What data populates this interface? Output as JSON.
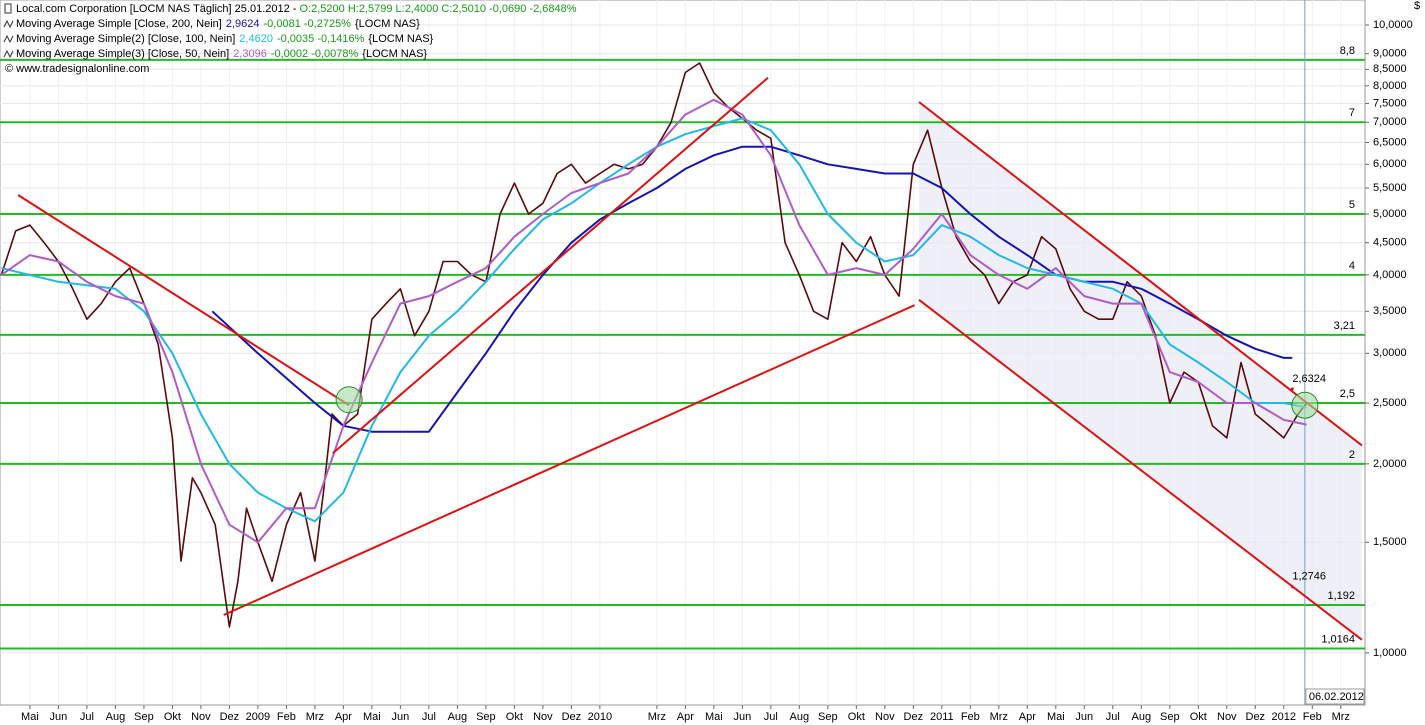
{
  "chart_data": {
    "type": "line",
    "log_scale": true,
    "grid": true,
    "currency": "$",
    "title_parts": [
      {
        "text": "Local.com Corporation [LOCM NAS  Täglich] 25.01.2012 - ",
        "color": "#000000"
      },
      {
        "text": "O:2,5200 H:2,5799 L:2,4000 C:2,5010 -0,0690 -2,6848%",
        "color": "#1a9a1a"
      }
    ],
    "copyright": "© www.tradesignalonline.com",
    "xlim": [
      -1.05,
      46.85
    ],
    "xticks": [
      {
        "value": 0,
        "label": "Mai"
      },
      {
        "value": 1,
        "label": "Jun"
      },
      {
        "value": 2,
        "label": "Jul"
      },
      {
        "value": 3,
        "label": "Aug"
      },
      {
        "value": 4,
        "label": "Sep"
      },
      {
        "value": 5,
        "label": "Okt"
      },
      {
        "value": 6,
        "label": "Nov"
      },
      {
        "value": 7,
        "label": "Dez"
      },
      {
        "value": 8,
        "label": "2009"
      },
      {
        "value": 9,
        "label": "Feb"
      },
      {
        "value": 10,
        "label": "Mrz"
      },
      {
        "value": 11,
        "label": "Apr"
      },
      {
        "value": 12,
        "label": "Mai"
      },
      {
        "value": 13,
        "label": "Jun"
      },
      {
        "value": 14,
        "label": "Jul"
      },
      {
        "value": 15,
        "label": "Aug"
      },
      {
        "value": 16,
        "label": "Sep"
      },
      {
        "value": 17,
        "label": "Okt"
      },
      {
        "value": 18,
        "label": "Nov"
      },
      {
        "value": 19,
        "label": "Dez"
      },
      {
        "value": 20,
        "label": "2010"
      },
      {
        "value": 22,
        "label": "Mrz"
      },
      {
        "value": 23,
        "label": "Apr"
      },
      {
        "value": 24,
        "label": "Mai"
      },
      {
        "value": 25,
        "label": "Jun"
      },
      {
        "value": 26,
        "label": "Jul"
      },
      {
        "value": 27,
        "label": "Aug"
      },
      {
        "value": 28,
        "label": "Sep"
      },
      {
        "value": 29,
        "label": "Okt"
      },
      {
        "value": 30,
        "label": "Nov"
      },
      {
        "value": 31,
        "label": "Dez"
      },
      {
        "value": 32,
        "label": "2011"
      },
      {
        "value": 33,
        "label": "Feb"
      },
      {
        "value": 34,
        "label": "Mrz"
      },
      {
        "value": 35,
        "label": "Apr"
      },
      {
        "value": 36,
        "label": "Mai"
      },
      {
        "value": 37,
        "label": "Jun"
      },
      {
        "value": 38,
        "label": "Jul"
      },
      {
        "value": 39,
        "label": "Aug"
      },
      {
        "value": 40,
        "label": "Sep"
      },
      {
        "value": 41,
        "label": "Okt"
      },
      {
        "value": 42,
        "label": "Nov"
      },
      {
        "value": 43,
        "label": "Dez"
      },
      {
        "value": 44,
        "label": "2012"
      },
      {
        "value": 45,
        "label": "Feb"
      },
      {
        "value": 46,
        "label": "Mrz"
      }
    ],
    "ylim": [
      0.826,
      10.96
    ],
    "yticks": [
      {
        "value": 10,
        "label": "10,0000"
      },
      {
        "value": 9,
        "label": "9,0000"
      },
      {
        "value": 8.5,
        "label": "8,5000"
      },
      {
        "value": 8,
        "label": "8,0000"
      },
      {
        "value": 7.5,
        "label": "7,5000"
      },
      {
        "value": 7,
        "label": "7,0000"
      },
      {
        "value": 6.5,
        "label": "6,5000"
      },
      {
        "value": 6,
        "label": "6,0000"
      },
      {
        "value": 5.5,
        "label": "5,5000"
      },
      {
        "value": 5,
        "label": "5,0000"
      },
      {
        "value": 4.5,
        "label": "4,5000"
      },
      {
        "value": 4,
        "label": "4,0000"
      },
      {
        "value": 3.5,
        "label": "3,5000"
      },
      {
        "value": 3,
        "label": "3,0000"
      },
      {
        "value": 2.5,
        "label": "2,5000"
      },
      {
        "value": 2,
        "label": "2,0000"
      },
      {
        "value": 1.5,
        "label": "1,5000"
      },
      {
        "value": 1,
        "label": "1,0000"
      }
    ],
    "price": {
      "color": "#5a0a0a",
      "x": [
        -1,
        -0.5,
        0,
        0.5,
        1,
        1.5,
        2,
        2.5,
        3,
        3.5,
        4,
        4.5,
        5,
        5.3,
        5.7,
        6,
        6.5,
        7,
        7.3,
        7.6,
        8,
        8.5,
        9,
        9.5,
        10,
        10.3,
        10.6,
        11,
        11.5,
        12,
        12.5,
        13,
        13.5,
        14,
        14.5,
        15,
        15.5,
        16,
        16.5,
        17,
        17.5,
        18,
        18.5,
        19,
        19.5,
        20,
        20.5,
        21,
        21.5,
        22,
        22.5,
        23,
        23.5,
        24,
        24.5,
        25,
        25.5,
        26,
        26.5,
        27,
        27.5,
        28,
        28.5,
        29,
        29.5,
        30,
        30.5,
        31,
        31.5,
        32,
        32.5,
        33,
        33.5,
        34,
        34.5,
        35,
        35.5,
        36,
        36.5,
        37,
        37.5,
        38,
        38.5,
        39,
        39.5,
        40,
        40.5,
        41,
        41.5,
        42,
        42.5,
        43,
        43.5,
        44,
        44.5,
        44.8
      ],
      "values": [
        4.0,
        4.7,
        4.8,
        4.5,
        4.2,
        3.8,
        3.4,
        3.6,
        3.9,
        4.1,
        3.6,
        3.1,
        2.2,
        1.4,
        1.9,
        1.8,
        1.6,
        1.1,
        1.3,
        1.7,
        1.5,
        1.3,
        1.6,
        1.8,
        1.4,
        1.8,
        2.4,
        2.3,
        2.4,
        3.4,
        3.6,
        3.8,
        3.2,
        3.5,
        4.2,
        4.2,
        4.0,
        3.9,
        5.0,
        5.6,
        5.0,
        5.2,
        5.8,
        6.0,
        5.6,
        5.8,
        6.0,
        5.9,
        6.0,
        6.4,
        7.0,
        8.4,
        8.7,
        7.8,
        7.4,
        7.1,
        6.8,
        6.6,
        4.5,
        4.0,
        3.5,
        3.4,
        4.5,
        4.2,
        4.6,
        4.0,
        3.7,
        6.0,
        6.8,
        5.5,
        4.6,
        4.2,
        4.0,
        3.6,
        3.9,
        4.0,
        4.6,
        4.4,
        3.8,
        3.5,
        3.4,
        3.4,
        3.9,
        3.7,
        3.2,
        2.5,
        2.8,
        2.7,
        2.3,
        2.2,
        2.9,
        2.4,
        2.3,
        2.2,
        2.4,
        2.5
      ]
    },
    "series": [
      {
        "name": "Moving Average Simple [Close, 200, Nein]",
        "legend_value": "2,9624",
        "legend_change": "-0,0081 -0,2725%",
        "legend_suffix": "{LOCM NAS}",
        "color": "#1414b4",
        "x": [
          6.4,
          8,
          10,
          11,
          12,
          13,
          14,
          15,
          16,
          17,
          18,
          19,
          20,
          21,
          22,
          23,
          24,
          25,
          26,
          27,
          28,
          29,
          30,
          31,
          32,
          33,
          34,
          35,
          36,
          37,
          38,
          39,
          40,
          41,
          42,
          43,
          44,
          44.3
        ],
        "values": [
          3.5,
          3.0,
          2.5,
          2.3,
          2.25,
          2.25,
          2.25,
          2.6,
          3.0,
          3.5,
          4.0,
          4.5,
          4.9,
          5.2,
          5.5,
          5.9,
          6.2,
          6.4,
          6.4,
          6.2,
          6.0,
          5.9,
          5.8,
          5.8,
          5.5,
          5.0,
          4.6,
          4.3,
          4.0,
          3.9,
          3.9,
          3.8,
          3.6,
          3.4,
          3.2,
          3.05,
          2.95,
          2.95
        ]
      },
      {
        "name": "Moving Average Simple(2) [Close, 100, Nein]",
        "legend_value": "2,4620",
        "legend_change": "-0,0035 -0,1416%",
        "legend_suffix": "{LOCM NAS}",
        "color": "#22b8e8",
        "x": [
          -1,
          1,
          3,
          4,
          5,
          6,
          7,
          8,
          9,
          10,
          11,
          12,
          13,
          14,
          15,
          16,
          17,
          18,
          19,
          20,
          21,
          22,
          23,
          24,
          25,
          26,
          27,
          28,
          29,
          30,
          31,
          32,
          33,
          34,
          35,
          36,
          37,
          38,
          39,
          40,
          41,
          42,
          43,
          44,
          44.8
        ],
        "values": [
          4.1,
          3.9,
          3.8,
          3.5,
          3.0,
          2.4,
          2.0,
          1.8,
          1.7,
          1.62,
          1.8,
          2.3,
          2.8,
          3.2,
          3.5,
          3.9,
          4.4,
          4.9,
          5.2,
          5.6,
          6.0,
          6.4,
          6.7,
          6.9,
          7.1,
          6.8,
          6.0,
          5.0,
          4.5,
          4.2,
          4.3,
          4.8,
          4.6,
          4.3,
          4.1,
          4.0,
          3.9,
          3.8,
          3.6,
          3.1,
          2.9,
          2.7,
          2.5,
          2.5,
          2.46
        ]
      },
      {
        "name": "Moving Average Simple(3) [Close, 50, Nein]",
        "legend_value": "2,3096",
        "legend_change": "-0,0002 -0,0078%",
        "legend_suffix": "{LOCM NAS}",
        "color": "#b05cc8",
        "x": [
          -1,
          0,
          1,
          2,
          3,
          4,
          5,
          6,
          7,
          8,
          9,
          10,
          11,
          12,
          13,
          14,
          15,
          16,
          17,
          18,
          19,
          20,
          21,
          22,
          23,
          24,
          25,
          26,
          27,
          28,
          29,
          30,
          31,
          32,
          33,
          34,
          35,
          36,
          37,
          38,
          39,
          40,
          41,
          42,
          43,
          44,
          44.8
        ],
        "values": [
          4.0,
          4.3,
          4.2,
          3.9,
          3.7,
          3.6,
          2.8,
          2.0,
          1.6,
          1.5,
          1.7,
          1.7,
          2.3,
          2.9,
          3.6,
          3.7,
          3.9,
          4.1,
          4.6,
          5.0,
          5.4,
          5.6,
          5.8,
          6.4,
          7.2,
          7.6,
          7.2,
          6.2,
          4.8,
          4.0,
          4.1,
          4.0,
          4.4,
          5.0,
          4.3,
          4.0,
          3.8,
          4.1,
          3.7,
          3.6,
          3.6,
          2.8,
          2.7,
          2.5,
          2.5,
          2.35,
          2.31
        ]
      }
    ],
    "levels": [
      {
        "value": 8.8,
        "label": "8,8"
      },
      {
        "value": 7,
        "label": "7"
      },
      {
        "value": 5,
        "label": "5"
      },
      {
        "value": 4,
        "label": "4"
      },
      {
        "value": 3.21,
        "label": "3,21"
      },
      {
        "value": 2.5,
        "label": "2,5"
      },
      {
        "value": 2,
        "label": "2"
      },
      {
        "value": 1.192,
        "label": "1,192"
      },
      {
        "value": 1.0164,
        "label": "1,0164"
      }
    ],
    "level_color": "#22bb22",
    "trendline_color": "#e01010",
    "trendlines": [
      {
        "x": [
          -0.42,
          11.2
        ],
        "values": [
          5.36,
          2.48
        ]
      },
      {
        "x": [
          10.63,
          25.9
        ],
        "values": [
          2.08,
          8.24
        ]
      },
      {
        "x": [
          6.8,
          31.05
        ],
        "values": [
          1.149,
          3.58
        ]
      },
      {
        "x": [
          31.2,
          46.74
        ],
        "values": [
          7.54,
          2.14
        ]
      },
      {
        "x": [
          31.2,
          46.74
        ],
        "values": [
          3.65,
          1.049
        ]
      }
    ],
    "point_labels": [
      {
        "x": 44.3,
        "value": 2.6324,
        "label": "2,6324"
      },
      {
        "x": 44.3,
        "value": 1.2746,
        "label": "1,2746"
      }
    ],
    "highlights": [
      {
        "x": 11.2,
        "value": 2.53
      },
      {
        "x": 44.74,
        "value": 2.48
      }
    ],
    "date_marker": {
      "x": 44.74,
      "label": "06.02.2012"
    }
  }
}
